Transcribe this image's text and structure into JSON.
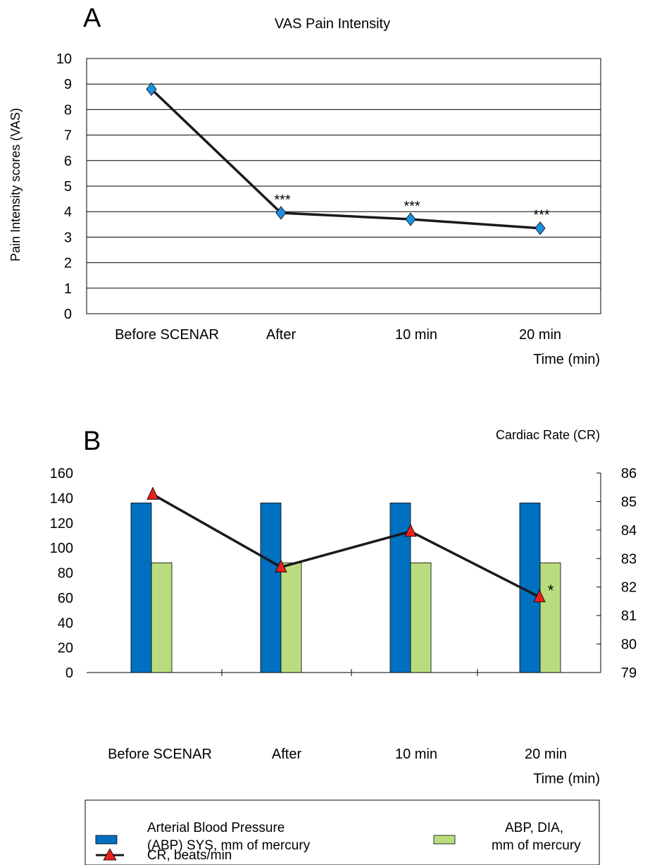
{
  "colors": {
    "sys_bar": "#0070C0",
    "dia_bar": "#B9DD7E",
    "cr_marker": "#E8211A",
    "vas_marker": "#1E90E0",
    "line": "#1a1a1a"
  },
  "chart_data": [
    {
      "type": "line",
      "panel_label": "A",
      "title": "VAS Pain Intensity",
      "xlabel": "Time (min)",
      "ylabel": "Pain Intensity scores (VAS)",
      "categories": [
        "Before SCENAR",
        "After",
        "10 min",
        "20 min"
      ],
      "series": [
        {
          "values": [
            8.8,
            3.95,
            3.7,
            3.35
          ]
        }
      ],
      "annotations": [
        "",
        "***",
        "***",
        "***"
      ],
      "yticks": [
        "0",
        "1",
        "2",
        "3",
        "4",
        "5",
        "6",
        "7",
        "8",
        "9",
        "10"
      ],
      "ylim": [
        0,
        10
      ],
      "grid": true,
      "marker": "diamond"
    },
    {
      "type": "bar",
      "panel_label": "B",
      "title": "",
      "right_axis_title": "Cardiac Rate (CR)",
      "xlabel": "Time (min)",
      "categories": [
        "Before SCENAR",
        "After",
        "10 min",
        "20 min"
      ],
      "series": [
        {
          "name": "Arterial Blood Pressure (ABP) SYS, mm of mercury",
          "legend_lines": [
            "Arterial Blood Pressure",
            "(ABP) SYS, mm of mercury"
          ],
          "axis": "left",
          "kind": "bar",
          "values": [
            136,
            136,
            136,
            136
          ]
        },
        {
          "name": "ABP, DIA, mm of mercury",
          "legend_lines": [
            "ABP, DIA,",
            "mm of mercury"
          ],
          "axis": "left",
          "kind": "bar",
          "values": [
            88,
            88,
            88,
            88
          ]
        },
        {
          "name": "CR, beats/min",
          "legend_lines": [
            "CR, beats/min"
          ],
          "axis": "right",
          "kind": "line",
          "marker": "triangle",
          "values": [
            85.25,
            82.7,
            83.95,
            81.65
          ]
        }
      ],
      "annotations": [
        "",
        "",
        "",
        "*"
      ],
      "yticks_left": [
        "0",
        "20",
        "40",
        "60",
        "80",
        "100",
        "120",
        "140",
        "160"
      ],
      "ylim_left": [
        0,
        160
      ],
      "yticks_right": [
        "79",
        "80",
        "81",
        "82",
        "83",
        "84",
        "85",
        "86"
      ],
      "ylim_right": [
        79,
        86
      ],
      "grid": false,
      "legend_position": "bottom"
    }
  ]
}
